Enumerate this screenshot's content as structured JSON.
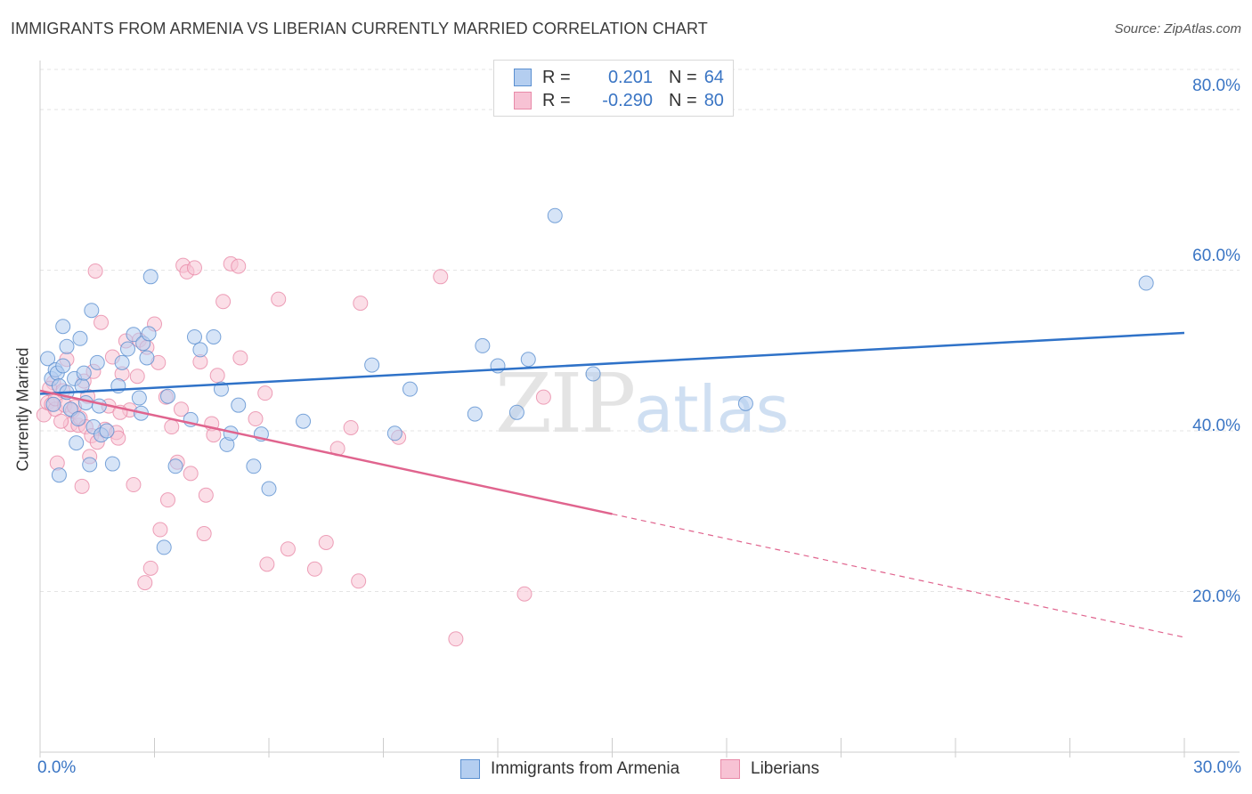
{
  "title": "IMMIGRANTS FROM ARMENIA VS LIBERIAN CURRENTLY MARRIED CORRELATION CHART",
  "source": "Source: ZipAtlas.com",
  "watermark": {
    "zip": "ZIP",
    "atlas": "atlas"
  },
  "legend": {
    "r_label": "R =",
    "n_label": "N =",
    "series": [
      {
        "name": "Immigrants from Armenia",
        "r": "0.201",
        "n": "64"
      },
      {
        "name": "Liberians",
        "r": "-0.290",
        "n": "80"
      }
    ]
  },
  "colors": {
    "armenia_fill": "#b4cef0",
    "armenia_stroke": "#5a8fd0",
    "armenia_line": "#2f72c8",
    "liberian_fill": "#f7c2d4",
    "liberian_stroke": "#e88aa8",
    "liberian_line": "#e0648e",
    "tick_text": "#3a75c4",
    "grid": "#e4e4e4"
  },
  "chart_data": {
    "type": "scatter",
    "title": "IMMIGRANTS FROM ARMENIA VS LIBERIAN CURRENTLY MARRIED CORRELATION CHART",
    "xlabel": "",
    "ylabel": "Currently Married",
    "xlim": [
      0,
      30
    ],
    "ylim": [
      0,
      85
    ],
    "x_tick_labels": [
      "0.0%",
      "30.0%"
    ],
    "y_ticks": [
      20,
      40,
      60,
      80
    ],
    "y_tick_labels": [
      "20.0%",
      "40.0%",
      "60.0%",
      "80.0%"
    ],
    "grid": true,
    "series": [
      {
        "name": "Immigrants from Armenia",
        "trend": {
          "x": [
            0,
            30
          ],
          "y": [
            44.6,
            52.2
          ],
          "dashed_from": null
        },
        "points": [
          [
            0.2,
            49
          ],
          [
            0.3,
            46.5
          ],
          [
            0.35,
            43.3
          ],
          [
            0.4,
            47.6
          ],
          [
            0.45,
            47.2
          ],
          [
            0.5,
            45.6
          ],
          [
            0.5,
            34.5
          ],
          [
            0.6,
            53
          ],
          [
            0.6,
            48.1
          ],
          [
            0.7,
            50.5
          ],
          [
            0.7,
            44.8
          ],
          [
            0.8,
            42.7
          ],
          [
            0.9,
            46.5
          ],
          [
            0.95,
            38.5
          ],
          [
            1.0,
            41.5
          ],
          [
            1.05,
            51.5
          ],
          [
            1.1,
            45.6
          ],
          [
            1.15,
            47.2
          ],
          [
            1.2,
            43.5
          ],
          [
            1.3,
            35.8
          ],
          [
            1.35,
            55
          ],
          [
            1.4,
            40.5
          ],
          [
            1.5,
            48.5
          ],
          [
            1.55,
            43.1
          ],
          [
            1.6,
            39.5
          ],
          [
            1.75,
            40
          ],
          [
            1.9,
            35.9
          ],
          [
            2.05,
            45.6
          ],
          [
            2.15,
            48.5
          ],
          [
            2.3,
            50.2
          ],
          [
            2.45,
            52
          ],
          [
            2.6,
            44.1
          ],
          [
            2.65,
            42.2
          ],
          [
            2.7,
            50.9
          ],
          [
            2.8,
            49.1
          ],
          [
            2.85,
            52.1
          ],
          [
            2.9,
            59.2
          ],
          [
            3.25,
            25.5
          ],
          [
            3.35,
            44.3
          ],
          [
            3.55,
            35.6
          ],
          [
            3.95,
            41.4
          ],
          [
            4.05,
            51.7
          ],
          [
            4.2,
            50.1
          ],
          [
            4.55,
            51.7
          ],
          [
            4.75,
            45.2
          ],
          [
            4.9,
            38.3
          ],
          [
            5.0,
            39.7
          ],
          [
            5.2,
            43.2
          ],
          [
            5.6,
            35.6
          ],
          [
            5.8,
            39.6
          ],
          [
            6.0,
            32.8
          ],
          [
            6.9,
            41.2
          ],
          [
            8.7,
            48.2
          ],
          [
            9.3,
            39.7
          ],
          [
            9.7,
            45.2
          ],
          [
            11.4,
            42.1
          ],
          [
            11.6,
            50.6
          ],
          [
            12.0,
            48.1
          ],
          [
            12.5,
            42.3
          ],
          [
            12.8,
            48.9
          ],
          [
            13.5,
            66.8
          ],
          [
            14.5,
            47.1
          ],
          [
            18.5,
            43.4
          ],
          [
            29.0,
            58.4
          ]
        ]
      },
      {
        "name": "Liberians",
        "trend": {
          "x": [
            0,
            30
          ],
          "y": [
            45,
            14.3
          ],
          "dashed_from": 15
        },
        "points": [
          [
            0.1,
            42
          ],
          [
            0.2,
            43.5
          ],
          [
            0.3,
            43.3
          ],
          [
            0.35,
            46
          ],
          [
            0.4,
            42.7
          ],
          [
            0.4,
            44
          ],
          [
            0.45,
            36
          ],
          [
            0.6,
            45
          ],
          [
            0.65,
            43.2
          ],
          [
            0.7,
            48.9
          ],
          [
            0.8,
            40.8
          ],
          [
            0.85,
            42.5
          ],
          [
            0.9,
            43
          ],
          [
            1.0,
            40.7
          ],
          [
            1.05,
            41.6
          ],
          [
            1.1,
            33.1
          ],
          [
            1.15,
            46.2
          ],
          [
            1.2,
            40.5
          ],
          [
            1.25,
            44.3
          ],
          [
            1.3,
            36.8
          ],
          [
            1.35,
            39.4
          ],
          [
            1.4,
            47.4
          ],
          [
            1.45,
            59.9
          ],
          [
            1.6,
            53.5
          ],
          [
            1.7,
            40.2
          ],
          [
            1.8,
            43.1
          ],
          [
            1.9,
            49.2
          ],
          [
            2.0,
            39.8
          ],
          [
            2.05,
            39.1
          ],
          [
            2.15,
            47.1
          ],
          [
            2.25,
            51.2
          ],
          [
            2.35,
            42.6
          ],
          [
            2.45,
            33.3
          ],
          [
            2.55,
            46.8
          ],
          [
            2.6,
            51.3
          ],
          [
            2.75,
            21.1
          ],
          [
            2.8,
            50.4
          ],
          [
            2.9,
            22.9
          ],
          [
            3.0,
            53.3
          ],
          [
            3.1,
            48.5
          ],
          [
            3.15,
            27.7
          ],
          [
            3.3,
            44.2
          ],
          [
            3.35,
            31.4
          ],
          [
            3.45,
            40.5
          ],
          [
            3.6,
            36.1
          ],
          [
            3.75,
            60.6
          ],
          [
            3.85,
            59.8
          ],
          [
            3.95,
            34.7
          ],
          [
            4.05,
            60.3
          ],
          [
            4.2,
            48.6
          ],
          [
            4.3,
            27.2
          ],
          [
            4.35,
            32
          ],
          [
            4.5,
            40.9
          ],
          [
            4.55,
            39.5
          ],
          [
            4.65,
            46.9
          ],
          [
            4.8,
            56.1
          ],
          [
            5.0,
            60.8
          ],
          [
            5.2,
            60.5
          ],
          [
            5.25,
            49.1
          ],
          [
            5.65,
            41.5
          ],
          [
            5.9,
            44.7
          ],
          [
            5.95,
            23.4
          ],
          [
            6.25,
            56.4
          ],
          [
            6.5,
            25.3
          ],
          [
            7.2,
            22.8
          ],
          [
            7.5,
            26.1
          ],
          [
            7.8,
            37.8
          ],
          [
            8.15,
            40.4
          ],
          [
            8.35,
            21.3
          ],
          [
            8.4,
            55.9
          ],
          [
            9.4,
            39.2
          ],
          [
            10.5,
            59.2
          ],
          [
            10.9,
            14.1
          ],
          [
            12.7,
            19.7
          ],
          [
            13.2,
            44.2
          ],
          [
            0.25,
            45.3
          ],
          [
            0.55,
            41.2
          ],
          [
            1.5,
            38.6
          ],
          [
            2.1,
            42.3
          ],
          [
            3.7,
            42.7
          ]
        ]
      }
    ]
  }
}
